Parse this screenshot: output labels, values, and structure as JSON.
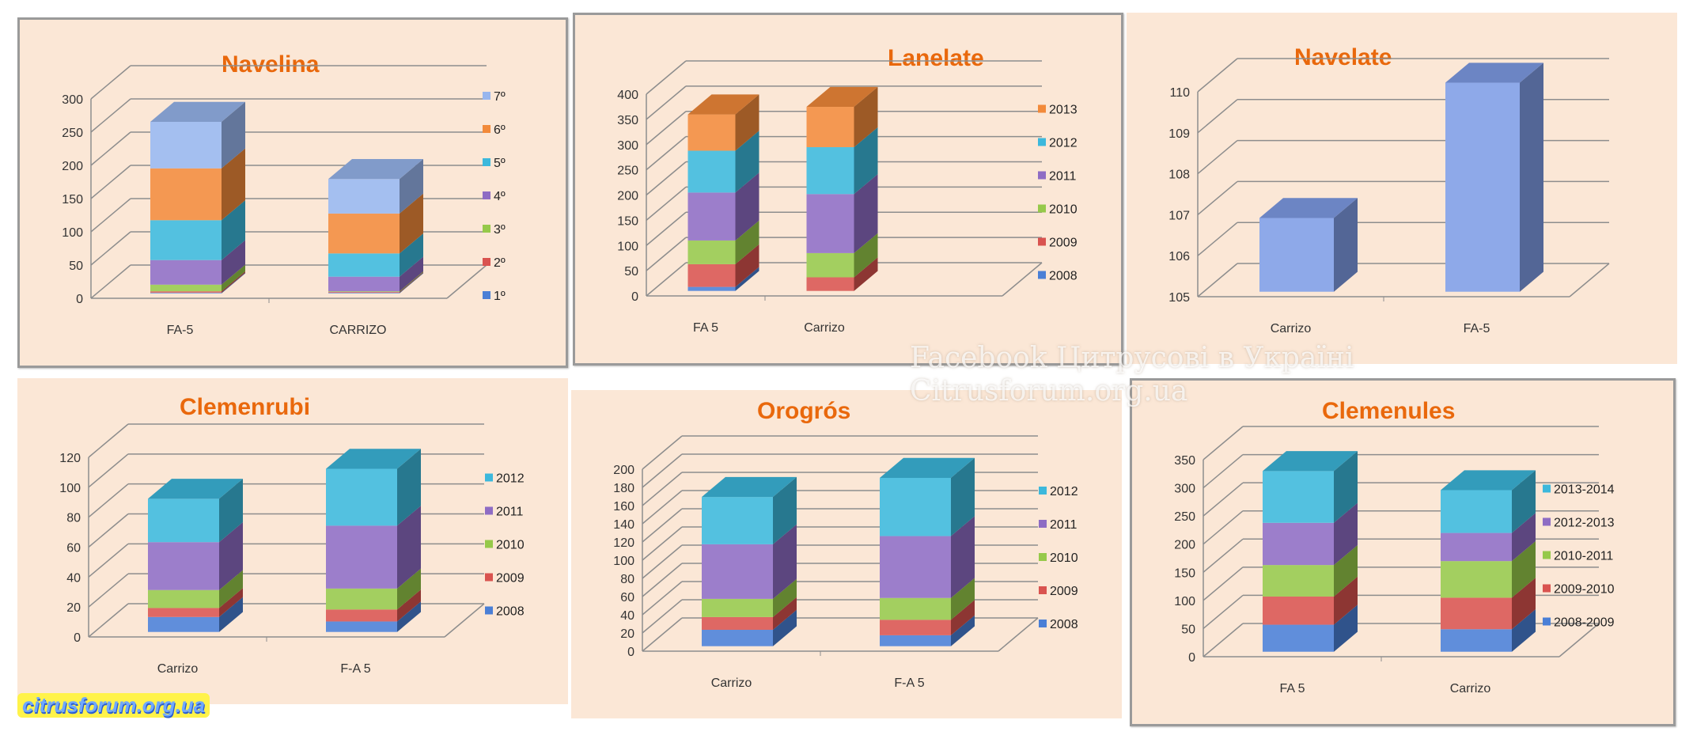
{
  "chart_data": [
    {
      "id": "p1",
      "type": "bar",
      "stacked": true,
      "title": "Navelina",
      "categories": [
        "FA-5",
        "CARRIZO"
      ],
      "ylim": [
        0,
        300
      ],
      "yticks": [
        0,
        50,
        100,
        150,
        200,
        250,
        300
      ],
      "series": [
        {
          "name": "1º",
          "color": "#4a7fd6",
          "values": [
            1,
            1
          ]
        },
        {
          "name": "2º",
          "color": "#d9534f",
          "values": [
            2,
            1
          ]
        },
        {
          "name": "3º",
          "color": "#96c94a",
          "values": [
            10,
            1
          ]
        },
        {
          "name": "4º",
          "color": "#8e6cc4",
          "values": [
            37,
            22
          ]
        },
        {
          "name": "5º",
          "color": "#3cb8dc",
          "values": [
            60,
            35
          ]
        },
        {
          "name": "6º",
          "color": "#f28a3a",
          "values": [
            78,
            60
          ]
        },
        {
          "name": "7º",
          "color": "#98b6ee",
          "values": [
            70,
            52
          ]
        }
      ],
      "legend": "right",
      "grid": true
    },
    {
      "id": "p2",
      "type": "bar",
      "stacked": true,
      "title": "Lanelate",
      "categories": [
        "FA 5",
        "Carrizo"
      ],
      "ylim": [
        0,
        400
      ],
      "yticks": [
        0,
        50,
        100,
        150,
        200,
        250,
        300,
        350,
        400
      ],
      "series": [
        {
          "name": "2008",
          "color": "#4a7fd6",
          "values": [
            8,
            0
          ]
        },
        {
          "name": "2009",
          "color": "#d9534f",
          "values": [
            45,
            27
          ]
        },
        {
          "name": "2010",
          "color": "#96c94a",
          "values": [
            47,
            48
          ]
        },
        {
          "name": "2011",
          "color": "#8e6cc4",
          "values": [
            95,
            117
          ]
        },
        {
          "name": "2012",
          "color": "#3cb8dc",
          "values": [
            83,
            93
          ]
        },
        {
          "name": "2013",
          "color": "#f28a3a",
          "values": [
            72,
            80
          ]
        }
      ],
      "legend": "right",
      "grid": true,
      "extra_slot": true
    },
    {
      "id": "p3",
      "type": "bar",
      "stacked": false,
      "title": "Navelate",
      "categories": [
        "Carrizo",
        "FA-5"
      ],
      "ylim": [
        105,
        110
      ],
      "yticks": [
        105,
        106,
        107,
        108,
        109,
        110
      ],
      "series": [
        {
          "name": "",
          "color": "#7f9de6",
          "values": [
            106.8,
            110.1
          ]
        }
      ],
      "legend": "none",
      "grid": true
    },
    {
      "id": "p4",
      "type": "bar",
      "stacked": true,
      "title": "Clemenrubi",
      "categories": [
        "Carrizo",
        "F-A 5"
      ],
      "ylim": [
        0,
        120
      ],
      "yticks": [
        0,
        20,
        40,
        60,
        80,
        100,
        120
      ],
      "series": [
        {
          "name": "2008",
          "color": "#4a7fd6",
          "values": [
            10,
            7
          ]
        },
        {
          "name": "2009",
          "color": "#d9534f",
          "values": [
            6,
            8
          ]
        },
        {
          "name": "2010",
          "color": "#96c94a",
          "values": [
            12,
            14
          ]
        },
        {
          "name": "2011",
          "color": "#8e6cc4",
          "values": [
            32,
            42
          ]
        },
        {
          "name": "2012",
          "color": "#3cb8dc",
          "values": [
            29,
            38
          ]
        }
      ],
      "legend": "right",
      "grid": true
    },
    {
      "id": "p5",
      "type": "bar",
      "stacked": true,
      "title": "Orogrós",
      "categories": [
        "Carrizo",
        "F-A 5"
      ],
      "ylim": [
        0,
        200
      ],
      "yticks": [
        0,
        20,
        40,
        60,
        80,
        100,
        120,
        140,
        160,
        180,
        200
      ],
      "series": [
        {
          "name": "2008",
          "color": "#4a7fd6",
          "values": [
            18,
            12
          ]
        },
        {
          "name": "2009",
          "color": "#d9534f",
          "values": [
            14,
            17
          ]
        },
        {
          "name": "2010",
          "color": "#96c94a",
          "values": [
            20,
            24
          ]
        },
        {
          "name": "2011",
          "color": "#8e6cc4",
          "values": [
            60,
            68
          ]
        },
        {
          "name": "2012",
          "color": "#3cb8dc",
          "values": [
            52,
            64
          ]
        }
      ],
      "legend": "right",
      "grid": true
    },
    {
      "id": "p6",
      "type": "bar",
      "stacked": true,
      "title": "Clemenules",
      "categories": [
        "FA 5",
        "Carrizo"
      ],
      "ylim": [
        0,
        350
      ],
      "yticks": [
        0,
        50,
        100,
        150,
        200,
        250,
        300,
        350
      ],
      "series": [
        {
          "name": "2008-2009",
          "color": "#4a7fd6",
          "values": [
            48,
            40
          ]
        },
        {
          "name": "2009-2010",
          "color": "#d9534f",
          "values": [
            50,
            56
          ]
        },
        {
          "name": "2010-2011",
          "color": "#96c94a",
          "values": [
            56,
            65
          ]
        },
        {
          "name": "2012-2013",
          "color": "#8e6cc4",
          "values": [
            75,
            50
          ]
        },
        {
          "name": "2013-2014",
          "color": "#3cb8dc",
          "values": [
            92,
            76
          ]
        }
      ],
      "legend": "right",
      "grid": true
    }
  ],
  "watermark": {
    "line1": "Facebook Цитрусові в Україні",
    "line2": "Citrusforum.org.ua"
  },
  "logo": "citrusforum.org.ua"
}
